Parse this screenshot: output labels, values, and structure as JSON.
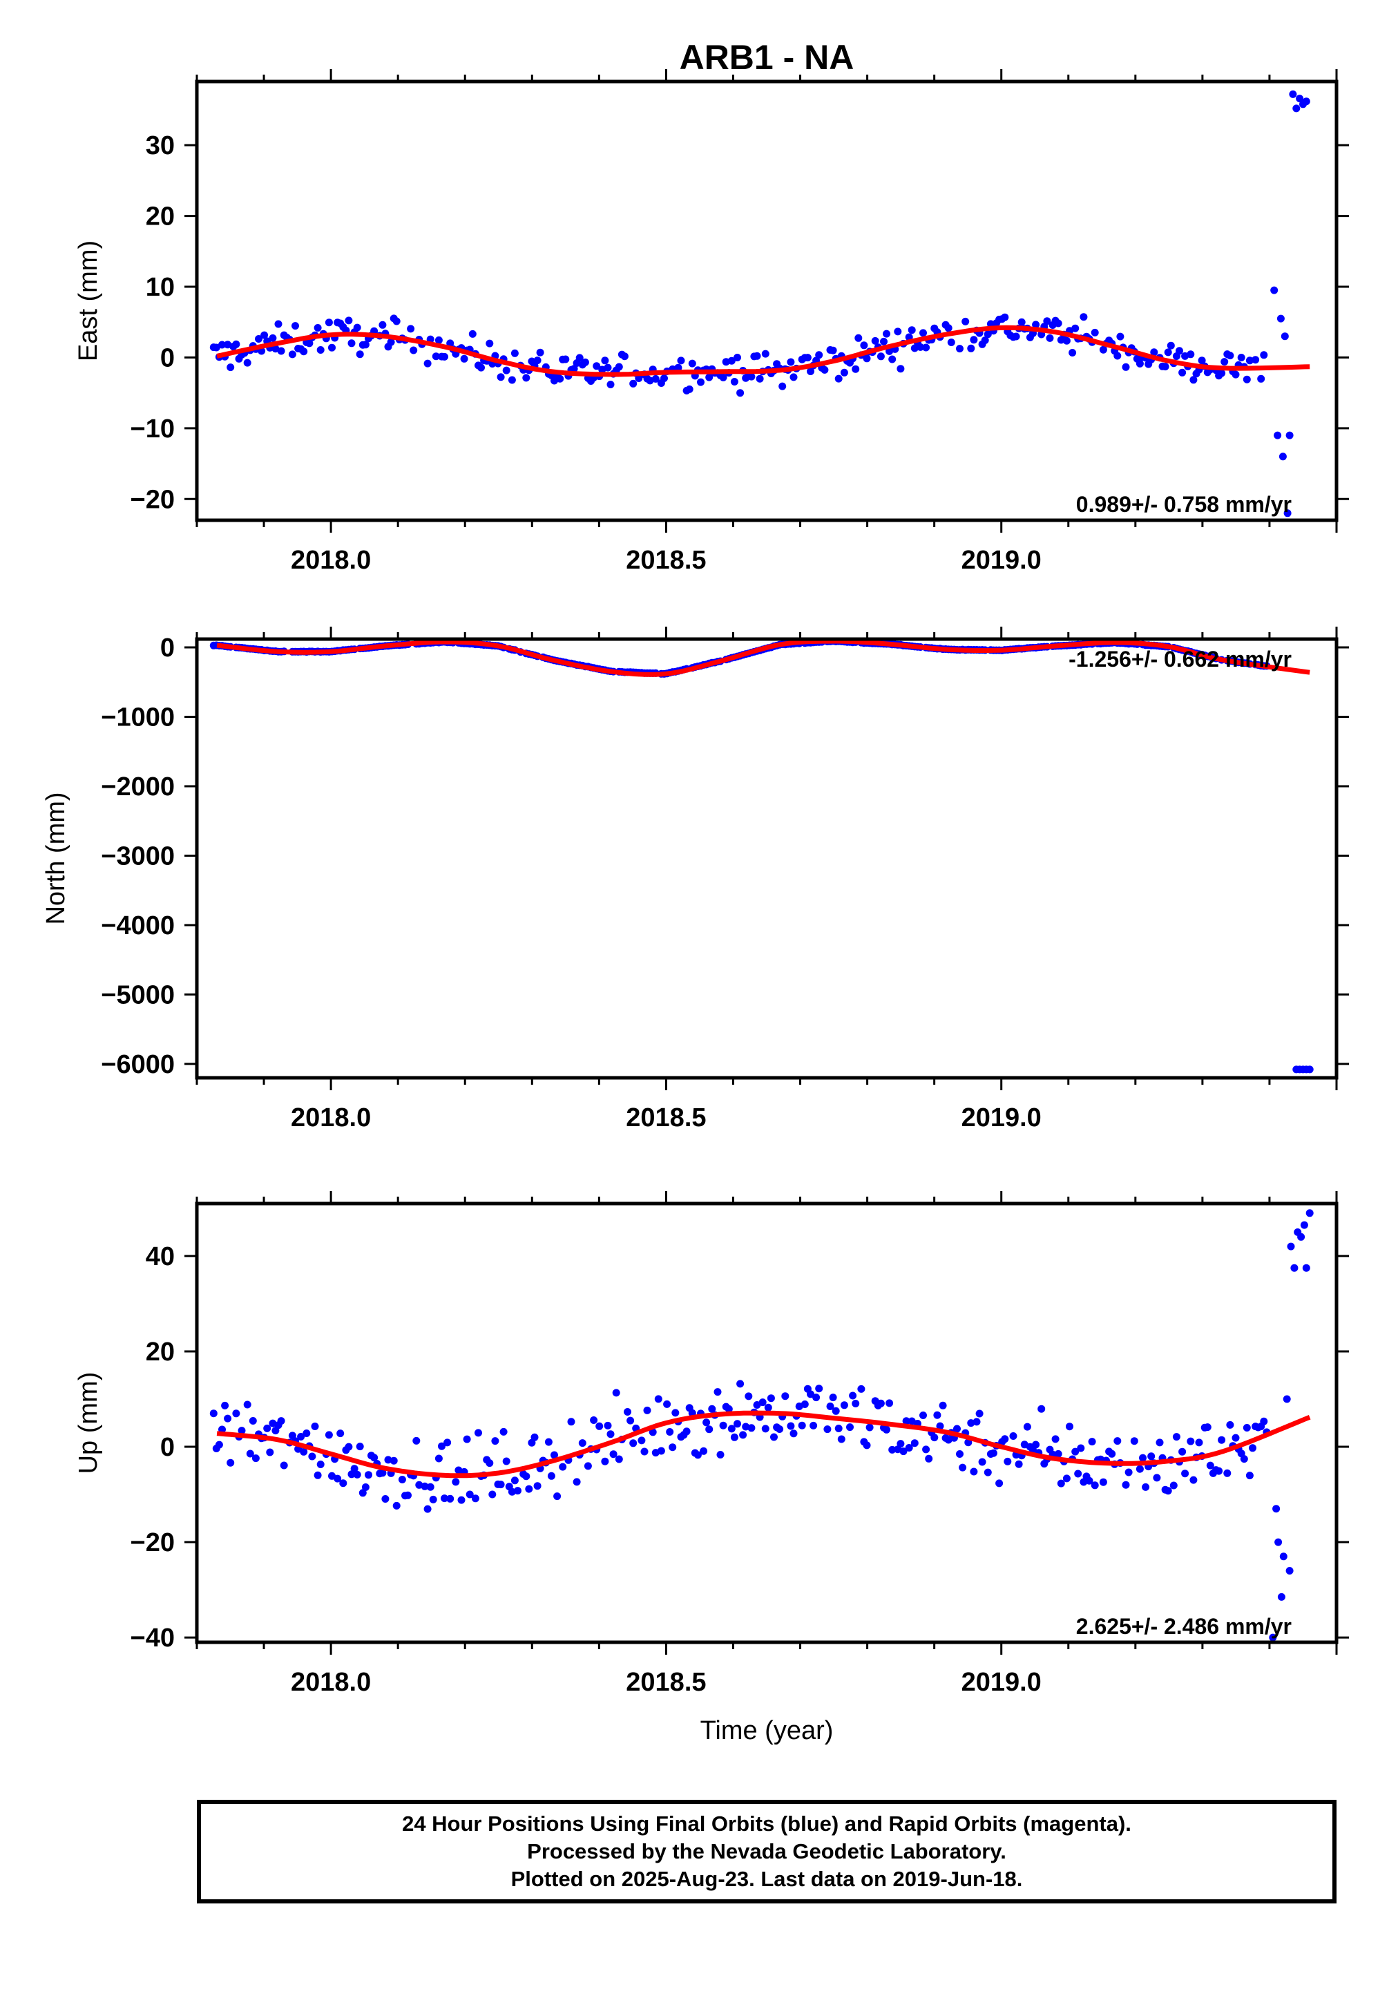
{
  "title": "ARB1 - NA",
  "colors": {
    "final_orbits": "#0000ff",
    "model": "#ff0000",
    "frame": "#000000"
  },
  "footer": {
    "line1": "24 Hour Positions Using Final Orbits (blue) and Rapid Orbits (magenta).",
    "line2": "Processed by the Nevada Geodetic Laboratory.",
    "line3": "Plotted on 2025-Aug-23. Last data on 2019-Jun-18."
  },
  "chart_data": [
    {
      "type": "scatter",
      "component": "east",
      "ylabel": "East (mm)",
      "xlabel": "",
      "xlim": [
        2017.8,
        2019.5
      ],
      "ylim": [
        -23,
        39
      ],
      "xticks": [
        2018.0,
        2018.5,
        2019.0
      ],
      "xtick_labels": [
        "2018.0",
        "2018.5",
        "2019.0"
      ],
      "yticks": [
        -20,
        -10,
        0,
        10,
        20,
        30
      ],
      "ytick_labels": [
        "−20",
        "−10",
        "0",
        "10",
        "20",
        "30"
      ],
      "rate_label": "0.989+/- 0.758 mm/yr",
      "model": {
        "x": [
          2017.83,
          2017.92,
          2018.0,
          2018.08,
          2018.17,
          2018.25,
          2018.33,
          2018.42,
          2018.5,
          2018.58,
          2018.67,
          2018.75,
          2018.83,
          2018.92,
          2019.0,
          2019.08,
          2019.17,
          2019.25,
          2019.33,
          2019.46
        ],
        "y": [
          0.2,
          2.0,
          3.2,
          3.0,
          1.5,
          -0.5,
          -2.0,
          -2.4,
          -2.1,
          -2.0,
          -1.8,
          -0.5,
          1.5,
          3.3,
          4.2,
          3.6,
          1.5,
          -0.5,
          -1.5,
          -1.3
        ]
      },
      "scatter_outliers": [
        {
          "x": 2019.407,
          "y": 9.5
        },
        {
          "x": 2019.412,
          "y": -11.0
        },
        {
          "x": 2019.417,
          "y": 5.5
        },
        {
          "x": 2019.42,
          "y": -14.0
        },
        {
          "x": 2019.423,
          "y": 3.0
        },
        {
          "x": 2019.427,
          "y": -22.0
        },
        {
          "x": 2019.43,
          "y": -11.0
        },
        {
          "x": 2019.435,
          "y": 37.2
        },
        {
          "x": 2019.44,
          "y": 35.2
        },
        {
          "x": 2019.445,
          "y": 36.6
        },
        {
          "x": 2019.45,
          "y": 35.8
        },
        {
          "x": 2019.455,
          "y": 36.2
        }
      ],
      "scatter_noise": 1.7
    },
    {
      "type": "scatter",
      "component": "north",
      "ylabel": "North (mm)",
      "xlabel": "",
      "xlim": [
        2017.8,
        2019.5
      ],
      "ylim": [
        -6200,
        120
      ],
      "xticks": [
        2018.0,
        2018.5,
        2019.0
      ],
      "xtick_labels": [
        "2018.0",
        "2018.5",
        "2019.0"
      ],
      "yticks": [
        -6000,
        -5000,
        -4000,
        -3000,
        -2000,
        -1000,
        0
      ],
      "ytick_labels": [
        "−6000",
        "−5000",
        "−4000",
        "−3000",
        "−2000",
        "−1000",
        "0"
      ],
      "rate_label": "-1.256+/- 0.662 mm/yr",
      "model": {
        "x": [
          2017.83,
          2017.92,
          2018.0,
          2018.08,
          2018.17,
          2018.25,
          2018.33,
          2018.42,
          2018.5,
          2018.58,
          2018.67,
          2018.75,
          2018.83,
          2018.92,
          2019.0,
          2019.08,
          2019.17,
          2019.25,
          2019.33,
          2019.46
        ],
        "y": [
          30,
          -60,
          -60,
          20,
          80,
          20,
          -180,
          -350,
          -380,
          -200,
          40,
          90,
          50,
          -30,
          -40,
          20,
          70,
          10,
          -180,
          -360
        ]
      },
      "scatter_outliers": [
        {
          "x": 2019.44,
          "y": -6080
        },
        {
          "x": 2019.445,
          "y": -6080
        },
        {
          "x": 2019.45,
          "y": -6080
        },
        {
          "x": 2019.455,
          "y": -6080
        },
        {
          "x": 2019.46,
          "y": -6080
        }
      ],
      "scatter_noise": 3
    },
    {
      "type": "scatter",
      "component": "up",
      "ylabel": "Up (mm)",
      "xlabel": "Time (year)",
      "xlim": [
        2017.8,
        2019.5
      ],
      "ylim": [
        -41,
        51
      ],
      "xticks": [
        2018.0,
        2018.5,
        2019.0
      ],
      "xtick_labels": [
        "2018.0",
        "2018.5",
        "2019.0"
      ],
      "yticks": [
        -40,
        -20,
        0,
        20,
        40
      ],
      "ytick_labels": [
        "−40",
        "−20",
        "0",
        "20",
        "40"
      ],
      "rate_label": "2.625+/- 2.486 mm/yr",
      "model": {
        "x": [
          2017.83,
          2017.92,
          2018.0,
          2018.08,
          2018.17,
          2018.25,
          2018.33,
          2018.42,
          2018.5,
          2018.58,
          2018.67,
          2018.75,
          2018.83,
          2018.92,
          2019.0,
          2019.08,
          2019.17,
          2019.25,
          2019.33,
          2019.46
        ],
        "y": [
          2.8,
          1.5,
          -1.5,
          -4.5,
          -6.0,
          -5.5,
          -3.0,
          1.0,
          5.0,
          6.8,
          7.0,
          6.0,
          4.8,
          3.0,
          0.0,
          -2.5,
          -3.5,
          -3.0,
          -1.0,
          6.2
        ]
      },
      "scatter_outliers": [
        {
          "x": 2019.405,
          "y": -40.0
        },
        {
          "x": 2019.41,
          "y": -13.0
        },
        {
          "x": 2019.413,
          "y": -20.0
        },
        {
          "x": 2019.418,
          "y": -31.5
        },
        {
          "x": 2019.421,
          "y": -23.0
        },
        {
          "x": 2019.426,
          "y": 10.0
        },
        {
          "x": 2019.43,
          "y": -26.0
        },
        {
          "x": 2019.432,
          "y": 42.0
        },
        {
          "x": 2019.437,
          "y": 37.5
        },
        {
          "x": 2019.442,
          "y": 45.0
        },
        {
          "x": 2019.447,
          "y": 44.0
        },
        {
          "x": 2019.452,
          "y": 46.5
        },
        {
          "x": 2019.455,
          "y": 37.5
        },
        {
          "x": 2019.46,
          "y": 49.0
        }
      ],
      "scatter_noise": 5.5
    }
  ]
}
